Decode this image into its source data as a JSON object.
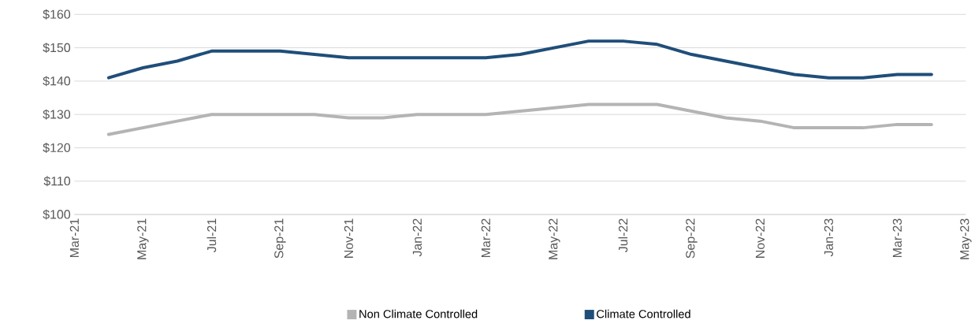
{
  "chart_data": {
    "type": "line",
    "x": [
      "2021-04",
      "2021-05",
      "2021-06",
      "2021-07",
      "2021-08",
      "2021-09",
      "2021-10",
      "2021-11",
      "2021-12",
      "2022-01",
      "2022-02",
      "2022-03",
      "2022-04",
      "2022-05",
      "2022-06",
      "2022-07",
      "2022-08",
      "2022-09",
      "2022-10",
      "2022-11",
      "2022-12",
      "2023-01",
      "2023-02",
      "2023-03",
      "2023-04"
    ],
    "series": [
      {
        "name": "Non Climate Controlled",
        "color": "#b4b4b4",
        "values": [
          124,
          126,
          128,
          130,
          130,
          130,
          130,
          129,
          129,
          130,
          130,
          130,
          131,
          132,
          133,
          133,
          133,
          131,
          129,
          128,
          126,
          126,
          126,
          127,
          127
        ]
      },
      {
        "name": "Climate Controlled",
        "color": "#1f4e79",
        "values": [
          141,
          144,
          146,
          149,
          149,
          149,
          148,
          147,
          147,
          147,
          147,
          147,
          148,
          150,
          152,
          152,
          151,
          148,
          146,
          144,
          142,
          141,
          141,
          142,
          142
        ]
      }
    ],
    "xlim": [
      "2021-03",
      "2023-05"
    ],
    "xticks": [
      {
        "value": "2021-03",
        "label": "Mar-21"
      },
      {
        "value": "2021-05",
        "label": "May-21"
      },
      {
        "value": "2021-07",
        "label": "Jul-21"
      },
      {
        "value": "2021-09",
        "label": "Sep-21"
      },
      {
        "value": "2021-11",
        "label": "Nov-21"
      },
      {
        "value": "2022-01",
        "label": "Jan-22"
      },
      {
        "value": "2022-03",
        "label": "Mar-22"
      },
      {
        "value": "2022-05",
        "label": "May-22"
      },
      {
        "value": "2022-07",
        "label": "Jul-22"
      },
      {
        "value": "2022-09",
        "label": "Sep-22"
      },
      {
        "value": "2022-11",
        "label": "Nov-22"
      },
      {
        "value": "2023-01",
        "label": "Jan-23"
      },
      {
        "value": "2023-03",
        "label": "Mar-23"
      },
      {
        "value": "2023-05",
        "label": "May-23"
      }
    ],
    "ylim": [
      100,
      160
    ],
    "yticks": [
      {
        "value": 100,
        "label": "$100"
      },
      {
        "value": 110,
        "label": "$110"
      },
      {
        "value": 120,
        "label": "$120"
      },
      {
        "value": 130,
        "label": "$130"
      },
      {
        "value": 140,
        "label": "$140"
      },
      {
        "value": 150,
        "label": "$150"
      },
      {
        "value": 160,
        "label": "$160"
      }
    ],
    "grid": "y",
    "legend": "bottom",
    "marker": "none",
    "line_style": "solid"
  }
}
